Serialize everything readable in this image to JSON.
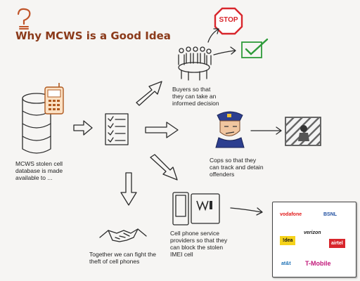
{
  "title": "Why MCWS is a Good Idea",
  "colors": {
    "title": "#8b3a1a",
    "stop": "#d8262c",
    "check": "#2e9b3a",
    "idea": "#f5d21a",
    "airtel": "#d8262c",
    "tmobile": "#c2187a",
    "vodafone": "#e21b1b"
  },
  "icons": [
    "question-mark-icon",
    "database-icon",
    "cell-phone-icon",
    "checklist-icon",
    "stop-sign-icon",
    "check-mark-icon",
    "audience-icon",
    "cop-icon",
    "jail-icon",
    "phone-block-icon",
    "handshake-icon"
  ],
  "labels": {
    "database": "MCWS stolen cell database is made available to ...",
    "buyers": "Buyers so that they can take an informed decision",
    "cops": "Cops so that they can track and detain offenders",
    "providers": "Cell phone service providers so that they can block the stolen IMEI cell",
    "together": "Together we can fight the theft of cell phones"
  },
  "stop_text": "STOP",
  "carriers": {
    "vodafone": "vodafone",
    "bsnl": "BSNL",
    "verizon": "verizon",
    "idea": "!dea",
    "airtel": "airtel",
    "att": "at&t",
    "tmobile": "T-Mobile"
  }
}
